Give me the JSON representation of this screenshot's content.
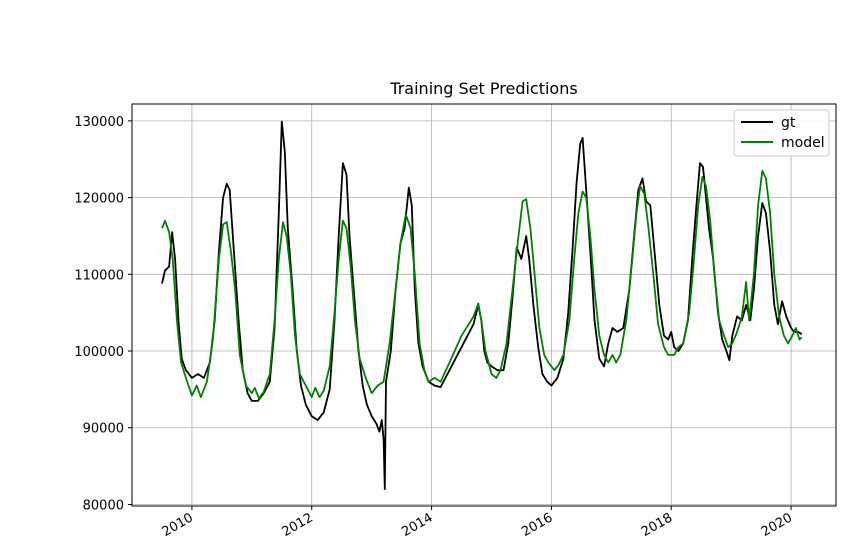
{
  "chart_data": {
    "type": "line",
    "title": "Training Set Predictions",
    "xlabel": "",
    "ylabel": "",
    "xlim": [
      2009.0,
      2020.75
    ],
    "ylim": [
      79800,
      132200
    ],
    "x_ticks": [
      2010,
      2012,
      2014,
      2016,
      2018,
      2020
    ],
    "x_tick_labels": [
      "2010",
      "2012",
      "2014",
      "2016",
      "2018",
      "2020"
    ],
    "y_ticks": [
      80000,
      90000,
      100000,
      110000,
      120000,
      130000
    ],
    "y_tick_labels": [
      "80000",
      "90000",
      "100000",
      "110000",
      "120000",
      "130000"
    ],
    "grid": true,
    "legend_position": "top-right",
    "series": [
      {
        "name": "gt",
        "color": "#000000",
        "points": [
          [
            2009.5,
            108800
          ],
          [
            2009.55,
            110500
          ],
          [
            2009.62,
            111000
          ],
          [
            2009.67,
            115500
          ],
          [
            2009.72,
            112000
          ],
          [
            2009.78,
            103500
          ],
          [
            2009.83,
            99000
          ],
          [
            2009.9,
            97500
          ],
          [
            2010.0,
            96500
          ],
          [
            2010.1,
            97000
          ],
          [
            2010.2,
            96500
          ],
          [
            2010.3,
            98500
          ],
          [
            2010.38,
            104000
          ],
          [
            2010.45,
            113000
          ],
          [
            2010.52,
            120000
          ],
          [
            2010.58,
            121800
          ],
          [
            2010.63,
            121000
          ],
          [
            2010.7,
            113000
          ],
          [
            2010.78,
            104000
          ],
          [
            2010.85,
            97500
          ],
          [
            2010.93,
            94500
          ],
          [
            2011.0,
            93500
          ],
          [
            2011.1,
            93500
          ],
          [
            2011.2,
            94500
          ],
          [
            2011.3,
            96000
          ],
          [
            2011.38,
            103000
          ],
          [
            2011.45,
            118000
          ],
          [
            2011.5,
            129900
          ],
          [
            2011.55,
            126000
          ],
          [
            2011.6,
            116000
          ],
          [
            2011.68,
            108000
          ],
          [
            2011.75,
            100000
          ],
          [
            2011.82,
            95500
          ],
          [
            2011.9,
            93000
          ],
          [
            2012.0,
            91500
          ],
          [
            2012.1,
            91000
          ],
          [
            2012.2,
            92000
          ],
          [
            2012.3,
            95000
          ],
          [
            2012.38,
            104000
          ],
          [
            2012.45,
            115000
          ],
          [
            2012.52,
            124500
          ],
          [
            2012.58,
            123000
          ],
          [
            2012.63,
            115000
          ],
          [
            2012.7,
            108000
          ],
          [
            2012.78,
            100000
          ],
          [
            2012.85,
            95500
          ],
          [
            2012.92,
            93000
          ],
          [
            2013.0,
            91500
          ],
          [
            2013.08,
            90500
          ],
          [
            2013.13,
            89500
          ],
          [
            2013.17,
            91000
          ],
          [
            2013.2,
            88500
          ],
          [
            2013.22,
            82000
          ],
          [
            2013.24,
            96000
          ],
          [
            2013.32,
            100000
          ],
          [
            2013.4,
            108000
          ],
          [
            2013.48,
            114000
          ],
          [
            2013.55,
            116000
          ],
          [
            2013.62,
            121300
          ],
          [
            2013.67,
            119000
          ],
          [
            2013.72,
            108000
          ],
          [
            2013.78,
            101000
          ],
          [
            2013.85,
            98000
          ],
          [
            2013.95,
            96000
          ],
          [
            2014.05,
            95500
          ],
          [
            2014.15,
            95300
          ],
          [
            2014.3,
            97500
          ],
          [
            2014.5,
            100500
          ],
          [
            2014.7,
            103500
          ],
          [
            2014.78,
            106000
          ],
          [
            2014.83,
            104000
          ],
          [
            2014.88,
            100000
          ],
          [
            2014.93,
            98500
          ],
          [
            2015.0,
            98000
          ],
          [
            2015.1,
            97500
          ],
          [
            2015.2,
            97500
          ],
          [
            2015.28,
            101000
          ],
          [
            2015.35,
            107000
          ],
          [
            2015.42,
            113500
          ],
          [
            2015.5,
            112000
          ],
          [
            2015.58,
            115000
          ],
          [
            2015.63,
            112000
          ],
          [
            2015.7,
            106000
          ],
          [
            2015.78,
            100500
          ],
          [
            2015.85,
            97000
          ],
          [
            2015.93,
            96000
          ],
          [
            2016.0,
            95500
          ],
          [
            2016.1,
            96500
          ],
          [
            2016.2,
            99000
          ],
          [
            2016.28,
            105000
          ],
          [
            2016.35,
            113000
          ],
          [
            2016.42,
            122000
          ],
          [
            2016.48,
            127000
          ],
          [
            2016.52,
            127800
          ],
          [
            2016.58,
            121000
          ],
          [
            2016.65,
            113000
          ],
          [
            2016.72,
            104000
          ],
          [
            2016.8,
            99000
          ],
          [
            2016.88,
            98000
          ],
          [
            2016.95,
            101000
          ],
          [
            2017.02,
            103000
          ],
          [
            2017.1,
            102500
          ],
          [
            2017.2,
            103000
          ],
          [
            2017.3,
            108000
          ],
          [
            2017.38,
            115000
          ],
          [
            2017.45,
            121000
          ],
          [
            2017.52,
            122500
          ],
          [
            2017.58,
            119500
          ],
          [
            2017.65,
            119000
          ],
          [
            2017.72,
            113000
          ],
          [
            2017.8,
            106000
          ],
          [
            2017.88,
            102000
          ],
          [
            2017.95,
            101500
          ],
          [
            2018.0,
            102500
          ],
          [
            2018.05,
            100500
          ],
          [
            2018.12,
            100000
          ],
          [
            2018.2,
            101000
          ],
          [
            2018.28,
            104000
          ],
          [
            2018.35,
            112000
          ],
          [
            2018.42,
            119000
          ],
          [
            2018.48,
            124500
          ],
          [
            2018.53,
            124000
          ],
          [
            2018.58,
            120000
          ],
          [
            2018.63,
            116000
          ],
          [
            2018.7,
            112000
          ],
          [
            2018.78,
            105000
          ],
          [
            2018.85,
            101500
          ],
          [
            2018.92,
            100000
          ],
          [
            2018.97,
            98800
          ],
          [
            2019.02,
            102000
          ],
          [
            2019.1,
            104500
          ],
          [
            2019.18,
            104000
          ],
          [
            2019.25,
            106000
          ],
          [
            2019.32,
            104000
          ],
          [
            2019.38,
            108000
          ],
          [
            2019.45,
            115000
          ],
          [
            2019.52,
            119300
          ],
          [
            2019.58,
            118000
          ],
          [
            2019.65,
            113000
          ],
          [
            2019.72,
            106000
          ],
          [
            2019.78,
            103500
          ],
          [
            2019.85,
            106500
          ],
          [
            2019.92,
            104500
          ],
          [
            2020.0,
            103000
          ],
          [
            2020.05,
            102500
          ],
          [
            2020.12,
            102500
          ],
          [
            2020.18,
            102200
          ]
        ]
      },
      {
        "name": "model",
        "color": "#008000",
        "points": [
          [
            2009.5,
            116000
          ],
          [
            2009.55,
            117000
          ],
          [
            2009.62,
            115500
          ],
          [
            2009.68,
            112000
          ],
          [
            2009.75,
            104000
          ],
          [
            2009.82,
            98500
          ],
          [
            2009.9,
            96500
          ],
          [
            2010.0,
            94200
          ],
          [
            2010.08,
            95500
          ],
          [
            2010.15,
            94000
          ],
          [
            2010.25,
            96000
          ],
          [
            2010.35,
            101500
          ],
          [
            2010.45,
            112000
          ],
          [
            2010.52,
            116500
          ],
          [
            2010.58,
            116800
          ],
          [
            2010.65,
            113000
          ],
          [
            2010.72,
            108000
          ],
          [
            2010.8,
            99500
          ],
          [
            2010.9,
            95500
          ],
          [
            2011.0,
            94500
          ],
          [
            2011.05,
            95200
          ],
          [
            2011.12,
            93800
          ],
          [
            2011.2,
            94700
          ],
          [
            2011.3,
            97000
          ],
          [
            2011.38,
            104000
          ],
          [
            2011.45,
            112000
          ],
          [
            2011.52,
            116800
          ],
          [
            2011.58,
            115000
          ],
          [
            2011.65,
            110000
          ],
          [
            2011.72,
            102000
          ],
          [
            2011.8,
            97000
          ],
          [
            2011.9,
            95500
          ],
          [
            2012.0,
            94000
          ],
          [
            2012.06,
            95200
          ],
          [
            2012.13,
            94000
          ],
          [
            2012.2,
            94800
          ],
          [
            2012.3,
            98000
          ],
          [
            2012.38,
            105000
          ],
          [
            2012.45,
            112000
          ],
          [
            2012.52,
            117000
          ],
          [
            2012.58,
            116000
          ],
          [
            2012.65,
            111000
          ],
          [
            2012.72,
            104000
          ],
          [
            2012.8,
            99000
          ],
          [
            2012.9,
            96500
          ],
          [
            2013.0,
            94500
          ],
          [
            2013.1,
            95500
          ],
          [
            2013.2,
            96000
          ],
          [
            2013.3,
            101000
          ],
          [
            2013.4,
            108000
          ],
          [
            2013.48,
            114000
          ],
          [
            2013.57,
            117800
          ],
          [
            2013.65,
            116000
          ],
          [
            2013.72,
            110000
          ],
          [
            2013.8,
            101000
          ],
          [
            2013.88,
            97500
          ],
          [
            2013.95,
            96000
          ],
          [
            2014.05,
            96500
          ],
          [
            2014.15,
            96000
          ],
          [
            2014.3,
            98500
          ],
          [
            2014.5,
            102000
          ],
          [
            2014.7,
            104500
          ],
          [
            2014.78,
            106200
          ],
          [
            2014.83,
            104000
          ],
          [
            2014.9,
            100000
          ],
          [
            2015.0,
            97000
          ],
          [
            2015.08,
            96500
          ],
          [
            2015.15,
            97500
          ],
          [
            2015.25,
            101000
          ],
          [
            2015.35,
            108000
          ],
          [
            2015.45,
            115000
          ],
          [
            2015.52,
            119500
          ],
          [
            2015.58,
            119800
          ],
          [
            2015.65,
            116000
          ],
          [
            2015.72,
            110000
          ],
          [
            2015.8,
            103000
          ],
          [
            2015.88,
            99500
          ],
          [
            2015.95,
            98500
          ],
          [
            2016.05,
            97500
          ],
          [
            2016.12,
            98200
          ],
          [
            2016.2,
            99500
          ],
          [
            2016.3,
            104000
          ],
          [
            2016.38,
            112000
          ],
          [
            2016.45,
            118000
          ],
          [
            2016.52,
            120800
          ],
          [
            2016.58,
            120000
          ],
          [
            2016.65,
            115000
          ],
          [
            2016.72,
            108000
          ],
          [
            2016.8,
            102000
          ],
          [
            2016.88,
            99500
          ],
          [
            2016.95,
            98500
          ],
          [
            2017.02,
            99500
          ],
          [
            2017.08,
            98500
          ],
          [
            2017.15,
            99500
          ],
          [
            2017.25,
            104000
          ],
          [
            2017.35,
            112000
          ],
          [
            2017.42,
            118000
          ],
          [
            2017.48,
            121500
          ],
          [
            2017.55,
            120500
          ],
          [
            2017.62,
            116000
          ],
          [
            2017.7,
            110000
          ],
          [
            2017.78,
            103500
          ],
          [
            2017.88,
            100500
          ],
          [
            2017.95,
            99500
          ],
          [
            2018.05,
            99500
          ],
          [
            2018.12,
            100500
          ],
          [
            2018.2,
            101000
          ],
          [
            2018.3,
            105000
          ],
          [
            2018.38,
            112000
          ],
          [
            2018.45,
            119000
          ],
          [
            2018.52,
            122700
          ],
          [
            2018.58,
            121500
          ],
          [
            2018.65,
            117000
          ],
          [
            2018.72,
            110000
          ],
          [
            2018.8,
            104000
          ],
          [
            2018.88,
            102000
          ],
          [
            2018.95,
            100500
          ],
          [
            2019.02,
            101000
          ],
          [
            2019.1,
            102500
          ],
          [
            2019.18,
            104500
          ],
          [
            2019.25,
            109000
          ],
          [
            2019.3,
            104000
          ],
          [
            2019.38,
            110000
          ],
          [
            2019.45,
            119000
          ],
          [
            2019.52,
            123500
          ],
          [
            2019.58,
            122500
          ],
          [
            2019.65,
            118000
          ],
          [
            2019.72,
            110000
          ],
          [
            2019.8,
            104500
          ],
          [
            2019.88,
            102000
          ],
          [
            2019.95,
            101000
          ],
          [
            2020.02,
            102000
          ],
          [
            2020.08,
            103000
          ],
          [
            2020.14,
            101500
          ],
          [
            2020.18,
            101800
          ]
        ]
      }
    ]
  }
}
